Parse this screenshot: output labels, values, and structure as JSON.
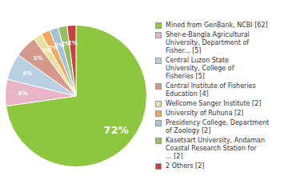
{
  "chart_data": {
    "type": "pie",
    "categories": [
      "Mined from GenBank, NCBI [62]",
      "Sher-e-Bangla Agricultural\nUniversity, Department of\nFisher... [5]",
      "Central Luzon State\nUniversity, College of\nFisheries [5]",
      "Central Institute of Fisheries\nEducation [4]",
      "Wellcome Sanger Institute [2]",
      "University of Ruhuna [2]",
      "Presidency College, Department\nof Zoology [2]",
      "Kasetsart University, Andaman\nCoastal Research Station for\n... [2]",
      "2 Others [2]"
    ],
    "values": [
      72,
      6,
      6,
      5,
      2,
      2,
      2,
      2,
      2
    ],
    "value_labels": [
      "72%",
      "6%",
      "6%",
      "5%",
      "2%",
      "2%",
      "2%",
      "2%",
      "2%"
    ],
    "colors": [
      "#8dc63f",
      "#e8b4c8",
      "#b8cfe4",
      "#d4998a",
      "#e8e0a0",
      "#f0a860",
      "#a8c0d8",
      "#90c060",
      "#c84040"
    ],
    "data_labels": true,
    "legend": "right"
  }
}
